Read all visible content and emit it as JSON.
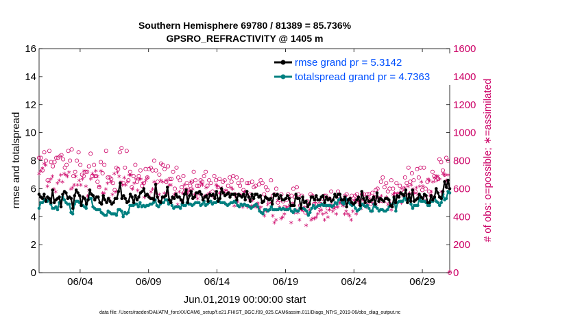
{
  "chart_data": {
    "type": "line",
    "title": "Southern Hemisphere 69780 / 81389 = 85.736%",
    "subtitle": "GPSRO_REFRACTIVITY @ 1405 m",
    "xlabel": "Jun.01,2019 00:00:00 start",
    "ylabel_left": "rmse and totalspread",
    "ylabel_right": "# of obs: o=possible; ∗=assimilated",
    "x_ticks": [
      "06/04",
      "06/09",
      "06/14",
      "06/19",
      "06/24",
      "06/29"
    ],
    "x_tick_days": [
      4,
      9,
      14,
      19,
      24,
      29
    ],
    "xlim_days": [
      1,
      31
    ],
    "ylim_left": [
      0,
      16
    ],
    "yticks_left": [
      "0",
      "2",
      "4",
      "6",
      "8",
      "10",
      "12",
      "14",
      "16"
    ],
    "ylim_right": [
      0,
      1600
    ],
    "yticks_right": [
      "0",
      "200",
      "400",
      "600",
      "800",
      "1000",
      "1200",
      "1400",
      "1600"
    ],
    "legend": [
      {
        "label": "rmse grand pr = 5.3142",
        "color": "#000000"
      },
      {
        "label": "totalspread grand pr = 4.7363",
        "color": "#008080"
      }
    ],
    "colors": {
      "rmse": "#000000",
      "spread": "#008080",
      "obs": "#cc0066",
      "legend_text": "#0050ff"
    },
    "series": [
      {
        "name": "rmse",
        "axis": "left",
        "values": [
          5.6,
          5.4,
          5.3,
          5.6,
          5.1,
          5.4,
          5.3,
          5.0,
          5.9,
          5.0,
          5.2,
          5.3,
          5.4,
          4.7,
          5.6,
          5.8,
          5.7,
          5.3,
          5.4,
          5.3,
          4.6,
          5.5,
          5.9,
          5.7,
          5.5,
          4.8,
          5.4,
          5.3,
          4.9,
          5.2,
          5.9,
          5.6,
          5.5,
          5.2,
          5.4,
          5.4,
          5.0,
          4.9,
          5.5,
          5.2,
          5.0,
          5.3,
          5.1,
          4.9,
          5.0,
          5.3,
          5.3,
          5.8,
          6.4,
          5.3,
          5.5,
          5.3,
          5.0,
          5.1,
          5.6,
          5.4,
          5.0,
          5.5,
          5.2,
          5.4,
          5.7,
          5.8,
          6.0,
          5.5,
          5.6,
          5.4,
          5.3,
          5.3,
          5.2,
          6.3,
          5.4,
          5.1,
          5.0,
          5.4,
          5.4,
          5.5,
          6.1,
          5.2,
          5.0,
          5.4,
          5.3,
          5.6,
          5.4,
          5.4,
          5.2,
          5.0,
          5.6,
          5.9,
          5.0,
          5.5,
          5.8,
          5.3,
          5.4,
          5.7,
          5.7,
          5.8,
          5.6,
          5.2,
          5.4,
          5.5,
          5.1,
          5.6,
          5.5,
          5.6,
          5.3,
          5.8,
          5.1,
          5.3,
          6.0,
          5.7,
          5.5,
          5.6,
          5.7,
          5.4,
          5.6,
          5.6,
          5.6,
          5.2,
          5.6,
          5.5,
          5.4,
          5.6,
          5.2,
          5.8,
          5.4,
          5.1,
          5.6,
          5.3,
          5.6,
          5.6,
          5.4,
          5.5,
          5.0,
          5.1,
          5.4,
          5.3,
          5.2,
          5.3,
          4.9,
          5.6,
          5.5,
          5.6,
          5.3,
          5.5,
          5.2,
          5.2,
          5.3,
          5.5,
          5.3,
          4.8,
          4.8,
          4.8,
          5.6,
          5.3,
          5.3,
          4.6,
          5.4,
          5.0,
          5.1,
          4.7,
          4.9,
          5.4,
          5.4,
          5.2,
          5.5,
          5.2,
          5.2,
          5.4,
          5.5,
          5.0,
          5.4,
          5.2,
          5.3,
          5.1,
          5.2,
          5.6,
          5.4,
          5.6,
          5.6,
          5.2,
          5.2,
          5.4,
          4.7,
          5.2,
          5.3,
          5.0,
          4.9,
          5.0,
          5.2,
          5.4,
          4.8,
          5.8,
          5.3,
          5.0,
          5.4,
          5.1,
          5.1,
          5.2,
          5.4,
          4.9,
          5.7,
          5.1,
          5.3,
          5.2,
          5.1,
          5.3,
          5.3,
          5.2,
          4.8,
          4.7,
          5.4,
          5.0,
          5.5,
          5.4,
          5.7,
          5.6,
          5.5,
          5.9,
          5.0,
          5.6,
          5.1,
          5.9,
          5.1,
          5.2,
          5.3,
          5.6,
          5.4,
          5.3,
          5.6,
          5.5,
          5.0,
          5.0,
          5.5,
          5.2,
          5.4,
          6.0,
          5.7,
          5.4,
          5.3,
          5.8,
          6.5,
          6.1,
          6.6,
          6.0
        ]
      },
      {
        "name": "totalspread",
        "axis": "left",
        "values": [
          4.6,
          5.0,
          5.0,
          5.2,
          5.1,
          5.1,
          5.3,
          4.9,
          4.6,
          4.6,
          4.7,
          4.5,
          5.0,
          5.1,
          5.4,
          5.2,
          5.0,
          4.9,
          4.9,
          4.3,
          4.2,
          4.9,
          5.1,
          5.1,
          5.0,
          4.8,
          4.8,
          4.7,
          4.6,
          5.2,
          5.3,
          5.3,
          4.7,
          4.6,
          4.5,
          4.5,
          4.5,
          4.3,
          4.2,
          4.1,
          4.1,
          4.4,
          4.3,
          4.2,
          4.2,
          4.2,
          4.1,
          4.5,
          4.5,
          4.4,
          4.0,
          4.3,
          4.2,
          4.3,
          4.8,
          4.8,
          4.8,
          4.9,
          4.9,
          4.7,
          5.0,
          4.7,
          4.8,
          4.7,
          4.8,
          4.8,
          4.9,
          4.9,
          5.0,
          5.2,
          4.8,
          4.7,
          4.9,
          5.0,
          5.0,
          5.2,
          5.2,
          4.9,
          5.1,
          4.8,
          4.6,
          4.7,
          4.7,
          4.7,
          4.6,
          4.9,
          4.8,
          4.8,
          5.0,
          4.9,
          4.9,
          4.8,
          4.9,
          5.0,
          5.0,
          5.0,
          4.8,
          4.9,
          5.1,
          4.8,
          4.9,
          5.0,
          5.1,
          4.9,
          5.0,
          5.0,
          5.1,
          5.1,
          5.0,
          5.0,
          5.0,
          4.9,
          4.8,
          4.9,
          5.0,
          5.0,
          5.1,
          5.0,
          4.8,
          4.7,
          4.9,
          4.8,
          4.9,
          4.8,
          4.8,
          4.7,
          4.6,
          4.7,
          4.8,
          4.9,
          4.7,
          4.4,
          4.3,
          4.2,
          4.5,
          4.5,
          4.4,
          4.5,
          4.7,
          4.5,
          4.5,
          4.5,
          4.5,
          4.6,
          4.5,
          4.6,
          4.5,
          4.5,
          4.5,
          4.6,
          4.4,
          4.3,
          4.5,
          4.4,
          4.4,
          4.6,
          4.6,
          4.6,
          4.5,
          4.4,
          4.1,
          4.3,
          4.6,
          4.8,
          4.6,
          4.7,
          4.8,
          4.8,
          4.9,
          4.8,
          4.8,
          4.8,
          4.8,
          4.8,
          4.7,
          4.8,
          5.0,
          4.9,
          5.2,
          5.3,
          5.0,
          4.9,
          5.3,
          5.2,
          5.0,
          4.9,
          4.8,
          4.9,
          4.6,
          4.4,
          4.5,
          4.6,
          4.9,
          4.8,
          4.7,
          4.8,
          4.6,
          4.4,
          4.4,
          4.9,
          4.7,
          4.6,
          4.4,
          4.5,
          4.5,
          4.4,
          4.4,
          4.5,
          4.7,
          4.8,
          4.9,
          5.3,
          4.4,
          5.0,
          5.1,
          5.1,
          5.1,
          5.4,
          5.2,
          5.1,
          5.3,
          4.9,
          4.6,
          4.8,
          4.8,
          4.8,
          5.3,
          5.1,
          5.1,
          5.1,
          5.0,
          4.8,
          4.8,
          5.1,
          5.1,
          5.4,
          5.1,
          5.0,
          4.8,
          5.0,
          5.6,
          5.2,
          5.3,
          5.8,
          5.7
        ]
      },
      {
        "name": "possible",
        "axis": "right",
        "marker": "circle",
        "values": [
          820,
          820,
          730,
          860,
          800,
          660,
          870,
          790,
          760,
          790,
          820,
          820,
          830,
          840,
          810,
          750,
          770,
          870,
          800,
          880,
          690,
          720,
          800,
          860,
          770,
          700,
          690,
          720,
          720,
          760,
          850,
          690,
          770,
          690,
          650,
          610,
          790,
          710,
          770,
          870,
          680,
          680,
          670,
          640,
          590,
          750,
          740,
          860,
          890,
          640,
          750,
          870,
          660,
          720,
          610,
          690,
          770,
          650,
          690,
          730,
          620,
          640,
          740,
          680,
          740,
          750,
          730,
          800,
          730,
          650,
          700,
          780,
          770,
          740,
          650,
          760,
          670,
          670,
          720,
          600,
          750,
          680,
          660,
          610,
          690,
          590,
          640,
          590,
          620,
          650,
          720,
          660,
          620,
          620,
          660,
          650,
          690,
          720,
          620,
          660,
          640,
          580,
          690,
          660,
          610,
          670,
          570,
          650,
          660,
          580,
          620,
          680,
          650,
          690,
          560,
          680,
          640,
          620,
          660,
          590,
          560,
          640,
          640,
          560,
          650,
          610,
          620,
          480,
          630,
          660,
          640,
          560,
          610,
          590,
          510,
          660,
          550,
          560,
          600,
          500,
          520,
          560,
          510,
          470,
          520,
          560,
          480,
          550,
          600,
          540,
          610,
          560,
          480,
          550,
          450,
          430,
          510,
          490,
          560,
          550,
          490,
          490,
          510,
          470,
          490,
          530,
          550,
          550,
          460,
          530,
          580,
          470,
          480,
          480,
          580,
          530,
          500,
          490,
          550,
          560,
          520,
          500,
          550,
          530,
          550,
          560,
          520,
          490,
          560,
          560,
          490,
          560,
          560,
          490,
          570,
          540,
          590,
          600,
          530,
          650,
          680,
          610,
          640,
          580,
          600,
          660,
          600,
          560,
          640,
          560,
          620,
          590,
          600,
          680,
          640,
          750,
          650,
          710,
          660,
          580,
          740,
          680,
          750,
          590,
          750,
          600,
          650,
          580,
          550,
          720,
          690,
          660,
          670,
          810,
          790,
          730,
          700,
          820,
          800,
          0
        ]
      },
      {
        "name": "assimilated",
        "axis": "right",
        "marker": "asterisk",
        "values": [
          700,
          720,
          740,
          770,
          760,
          610,
          640,
          660,
          680,
          590,
          570,
          630,
          650,
          690,
          640,
          700,
          690,
          680,
          710,
          590,
          600,
          620,
          680,
          620,
          650,
          620,
          660,
          720,
          610,
          540,
          580,
          660,
          700,
          680,
          720,
          680,
          610,
          720,
          560,
          560,
          590,
          630,
          520,
          640,
          550,
          700,
          570,
          710,
          680,
          640,
          620,
          670,
          620,
          640,
          690,
          690,
          590,
          630,
          660,
          580,
          660,
          660,
          630,
          530,
          650,
          670,
          540,
          570,
          590,
          640,
          560,
          530,
          550,
          650,
          640,
          560,
          650,
          560,
          620,
          620,
          530,
          550,
          560,
          480,
          570,
          510,
          560,
          620,
          590,
          560,
          580,
          640,
          590,
          550,
          540,
          520,
          550,
          630,
          620,
          540,
          600,
          550,
          560,
          500,
          540,
          530,
          620,
          610,
          560,
          600,
          580,
          490,
          580,
          560,
          560,
          600,
          590,
          470,
          530,
          500,
          550,
          550,
          460,
          570,
          570,
          460,
          510,
          470,
          510,
          470,
          460,
          490,
          450,
          460,
          420,
          400,
          430,
          480,
          440,
          490,
          400,
          350,
          370,
          510,
          460,
          380,
          390,
          410,
          460,
          450,
          460,
          350,
          490,
          420,
          440,
          420,
          370,
          440,
          440,
          460,
          330,
          410,
          440,
          370,
          380,
          380,
          390,
          410,
          430,
          440,
          410,
          370,
          420,
          390,
          440,
          480,
          430,
          450,
          410,
          460,
          490,
          500,
          470,
          410,
          430,
          410,
          400,
          370,
          430,
          510,
          410,
          500,
          480,
          450,
          510,
          470,
          460,
          480,
          520,
          430,
          490,
          470,
          480,
          530,
          500,
          540,
          500,
          500,
          530,
          480,
          500,
          440,
          550,
          560,
          500,
          560,
          560,
          490,
          540,
          600,
          550,
          610,
          560,
          620,
          590,
          560,
          600,
          550,
          610,
          640,
          610,
          540,
          510,
          660,
          650,
          570,
          640,
          670,
          680,
          680,
          660,
          570,
          700,
          690,
          650,
          690,
          0
        ]
      }
    ]
  },
  "footer": "data file: /Users/raeder/DAI/ATM_forcXX/CAM6_setup/f.e21.FHIST_BGC.f09_025.CAM6assim.011/Diags_NTrS_2019-06/obs_diag_output.nc"
}
